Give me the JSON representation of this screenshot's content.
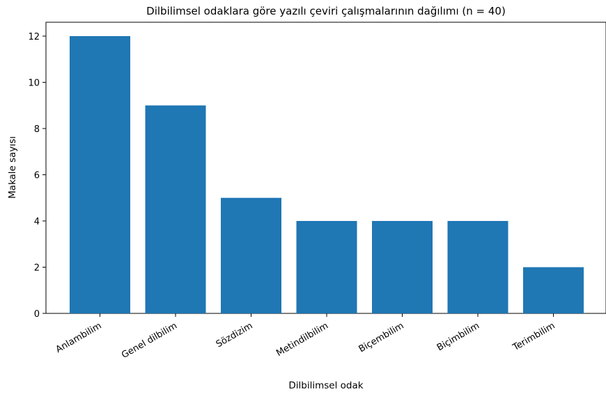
{
  "chart_data": {
    "type": "bar",
    "title": "Dilbilimsel odaklara göre yazılı çeviri çalışmalarının dağılımı (n = 40)",
    "xlabel": "Dilbilimsel odak",
    "ylabel": "Makale sayısı",
    "categories": [
      "Anlambilim",
      "Genel dilbilim",
      "Sözdizim",
      "Metindilbilim",
      "Biçembilim",
      "Biçimbilim",
      "Terimbilim"
    ],
    "values": [
      12,
      9,
      5,
      4,
      4,
      4,
      2
    ],
    "ylim": [
      0,
      12.6
    ],
    "yticks": [
      0,
      2,
      4,
      6,
      8,
      10,
      12
    ],
    "grid": false,
    "bar_color": "#1f77b4"
  }
}
